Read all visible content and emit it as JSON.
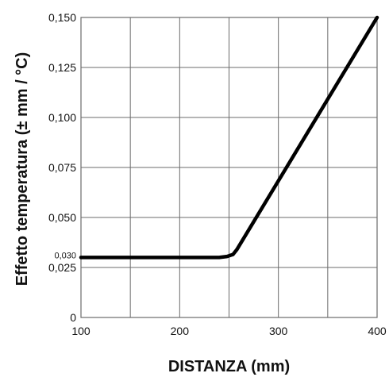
{
  "chart_data": {
    "type": "line",
    "title": "",
    "xlabel": "DISTANZA (mm)",
    "ylabel": "Effetto temperatura (± mm / °C)",
    "xlim": [
      100,
      400
    ],
    "ylim": [
      0,
      0.15
    ],
    "x_ticks": [
      {
        "value": 100,
        "label": "100"
      },
      {
        "value": 200,
        "label": "200"
      },
      {
        "value": 300,
        "label": "300"
      },
      {
        "value": 400,
        "label": "400"
      }
    ],
    "x_grid": [
      100,
      150,
      200,
      250,
      300,
      350,
      400
    ],
    "y_ticks": [
      {
        "value": 0,
        "label": "0"
      },
      {
        "value": 0.025,
        "label": "0,025"
      },
      {
        "value": 0.05,
        "label": "0,050"
      },
      {
        "value": 0.075,
        "label": "0,075"
      },
      {
        "value": 0.1,
        "label": "0,100"
      },
      {
        "value": 0.125,
        "label": "0,125"
      },
      {
        "value": 0.15,
        "label": "0,150"
      }
    ],
    "y_annotation": {
      "value": 0.03,
      "label": "0,030"
    },
    "grid": true,
    "legend": "none",
    "series": [
      {
        "x": [
          100,
          240,
          248,
          254,
          258,
          400
        ],
        "y": [
          0.03,
          0.03,
          0.0305,
          0.0315,
          0.034,
          0.15
        ]
      }
    ],
    "colors": {
      "line": "#000000",
      "grid": "#6b6b6b",
      "text": "#111111"
    }
  }
}
